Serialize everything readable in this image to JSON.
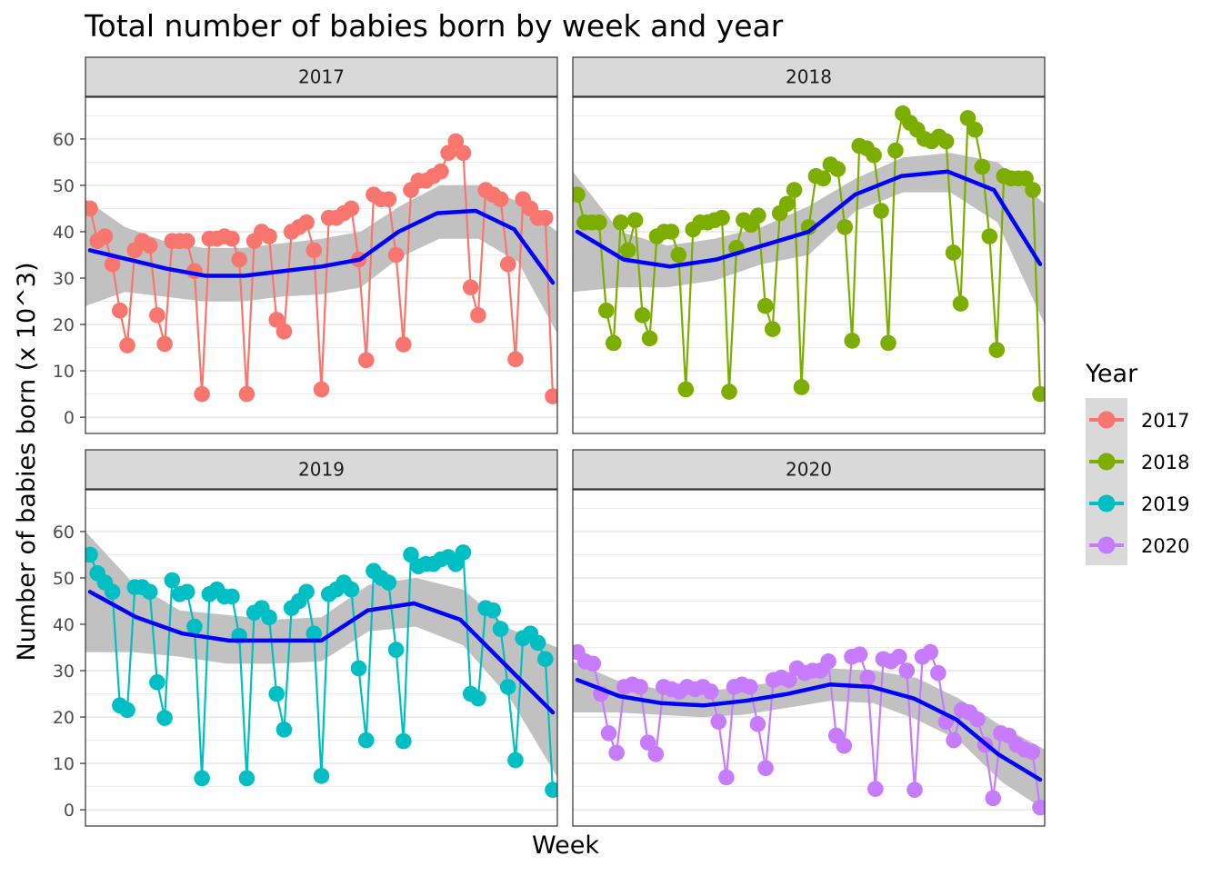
{
  "chart_data": {
    "type": "line",
    "title": "Total number of babies born by week and year",
    "xlabel": "Week",
    "ylabel": "Number of babies born (x 10^3)",
    "ylim": [
      -3.5,
      69
    ],
    "yticks": [
      0,
      10,
      20,
      30,
      40,
      50,
      60
    ],
    "grid": true,
    "legend": {
      "title": "Year",
      "position": "right"
    },
    "smooth_color": "#0000FF",
    "band_color": "#BEBEBE",
    "panels": [
      {
        "label": "2017",
        "color": "#F8766D",
        "values": [
          45,
          38,
          39,
          33,
          23,
          15.5,
          36,
          38,
          37,
          22,
          15.8,
          38,
          38,
          38,
          31.5,
          5,
          38.5,
          38.5,
          39,
          38.5,
          34,
          5,
          38,
          40,
          39,
          21,
          18.5,
          40,
          41,
          42,
          36,
          6,
          43,
          43,
          44,
          45,
          34,
          12.3,
          48,
          47,
          47,
          35,
          15.7,
          49,
          51,
          51,
          52,
          53,
          57,
          59.5,
          57,
          28,
          22,
          49,
          48,
          47,
          33,
          12.5,
          47,
          45,
          43,
          43,
          4.5
        ],
        "trend": [
          36,
          34,
          32,
          30.5,
          30.5,
          31.5,
          32.5,
          34,
          40,
          44,
          44.5,
          40.5,
          29
        ],
        "band_upper": [
          47,
          41,
          38,
          36.5,
          36.5,
          37.5,
          38.5,
          40,
          45.5,
          50,
          50,
          46.5,
          40
        ],
        "band_lower": [
          24,
          27,
          26,
          25,
          25,
          26,
          26.5,
          28,
          34.5,
          38.5,
          38.5,
          33.5,
          18
        ]
      },
      {
        "label": "2018",
        "color": "#7CAE00",
        "values": [
          48,
          42,
          42,
          42,
          23,
          16,
          42,
          36,
          42.5,
          22,
          17,
          39,
          40,
          40,
          35,
          6,
          40.5,
          42,
          42,
          42.5,
          43,
          5.5,
          36.5,
          42.5,
          41.5,
          43.5,
          24,
          19,
          44,
          46,
          49,
          6.5,
          41,
          52,
          51.5,
          54.5,
          53.5,
          41,
          16.5,
          58.5,
          58,
          56.5,
          44.5,
          16,
          57.5,
          65.5,
          63.5,
          62,
          60,
          59.5,
          60.5,
          59.5,
          35.5,
          24.5,
          64.5,
          62,
          54,
          39,
          14.5,
          52,
          51.5,
          51.5,
          51.5,
          49,
          5
        ],
        "trend": [
          40,
          34,
          32.5,
          34,
          37,
          40,
          48,
          52,
          53,
          49,
          33
        ],
        "band_upper": [
          53,
          40,
          37,
          38.5,
          41,
          45.5,
          51.5,
          56,
          57,
          55,
          46
        ],
        "band_lower": [
          27,
          28,
          28,
          29.5,
          33,
          35,
          44.5,
          48.5,
          48.5,
          42,
          20
        ]
      },
      {
        "label": "2019",
        "color": "#00BFC4",
        "values": [
          55,
          51,
          49,
          47,
          22.5,
          21.5,
          48,
          48,
          47,
          27.5,
          19.8,
          49.5,
          46.5,
          47,
          39.5,
          6.8,
          46.5,
          47.5,
          46,
          46,
          37.5,
          6.8,
          42.5,
          43.5,
          41.5,
          25,
          17.3,
          43.5,
          45,
          47,
          38,
          7.3,
          46.5,
          47.5,
          49,
          47.5,
          30.5,
          15,
          51.5,
          50,
          49,
          34.5,
          14.8,
          55,
          52.5,
          53,
          53,
          54,
          54.5,
          53,
          55.5,
          25,
          24,
          43.5,
          43,
          39,
          26.5,
          10.7,
          37,
          38,
          36,
          32.5,
          4.3
        ],
        "trend": [
          47,
          41.5,
          38,
          36.5,
          36.5,
          36.5,
          43,
          44.5,
          41,
          31,
          21
        ],
        "band_upper": [
          60,
          49,
          43,
          42,
          41,
          41.5,
          48.5,
          50,
          47.5,
          39,
          35
        ],
        "band_lower": [
          34,
          34,
          33,
          31.5,
          31.5,
          32,
          38.5,
          39.5,
          35.5,
          24,
          7
        ]
      },
      {
        "label": "2020",
        "color": "#C77CFF",
        "values": [
          34,
          32,
          31.5,
          25,
          16.5,
          12.3,
          26.5,
          27,
          26.5,
          14.5,
          12,
          26.5,
          26,
          25.5,
          26.5,
          26,
          26.5,
          25.5,
          19,
          7,
          26.5,
          27,
          26.5,
          18.5,
          9,
          28,
          28.5,
          28,
          30.5,
          29.5,
          30,
          30,
          32,
          16,
          13.8,
          33,
          33.5,
          28.5,
          4.5,
          32.5,
          32,
          33,
          30,
          4.3,
          33,
          34,
          29.5,
          19,
          15,
          21.5,
          21,
          19.5,
          14,
          2.5,
          16.5,
          16,
          14,
          13,
          12.5,
          0.5
        ],
        "trend": [
          28,
          24.5,
          23,
          22.5,
          23.5,
          25,
          27,
          26.5,
          24,
          19.5,
          12,
          6.5
        ],
        "band_upper": [
          32,
          28,
          26,
          25.5,
          26.5,
          28,
          30.5,
          30,
          28.5,
          24,
          18,
          13
        ],
        "band_lower": [
          21,
          21,
          20.5,
          20,
          20.5,
          22,
          23.5,
          23,
          19.5,
          15,
          6,
          0
        ]
      }
    ]
  }
}
